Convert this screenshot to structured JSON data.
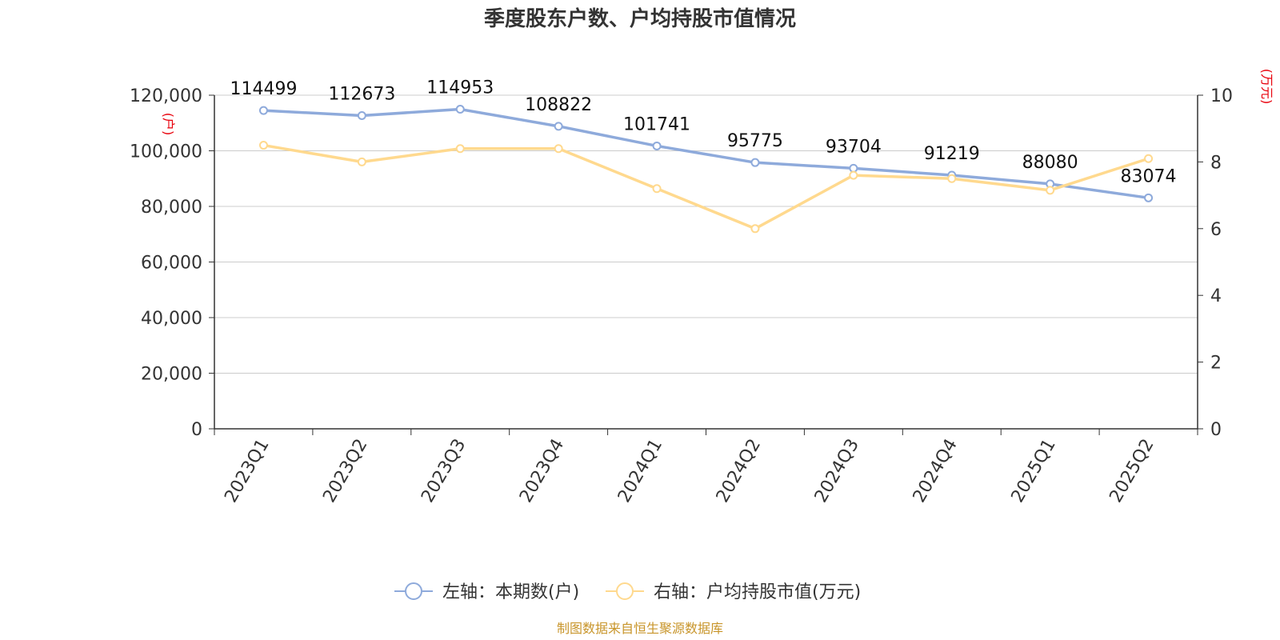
{
  "chart_data": {
    "type": "line",
    "title": "季度股东户数、户均持股市值情况",
    "categories": [
      "2023Q1",
      "2023Q2",
      "2023Q3",
      "2023Q4",
      "2024Q1",
      "2024Q2",
      "2024Q3",
      "2024Q4",
      "2025Q1",
      "2025Q2"
    ],
    "series": [
      {
        "name": "左轴：本期数(户)",
        "axis": "left",
        "color": "#8eaadb",
        "values": [
          114499,
          112673,
          114953,
          108822,
          101741,
          95775,
          93704,
          91219,
          88080,
          83074
        ],
        "labels": [
          "114499",
          "112673",
          "114953",
          "108822",
          "101741",
          "95775",
          "93704",
          "91219",
          "88080",
          "83074"
        ]
      },
      {
        "name": "右轴：户均持股市值(万元)",
        "axis": "right",
        "color": "#ffd98e",
        "values": [
          8.5,
          8.0,
          8.4,
          8.4,
          7.2,
          6.0,
          7.6,
          7.5,
          7.15,
          8.1
        ]
      }
    ],
    "left_axis": {
      "unit": "(户)",
      "ylim": [
        0,
        120000
      ],
      "ticks": [
        "0",
        "20,000",
        "40,000",
        "60,000",
        "80,000",
        "100,000",
        "120,000"
      ]
    },
    "right_axis": {
      "unit": "(万元)",
      "ylim": [
        0,
        10
      ],
      "ticks": [
        "0",
        "2",
        "4",
        "6",
        "8",
        "10"
      ]
    },
    "grid": true,
    "legend_position": "bottom-center"
  },
  "source": "制图数据来自恒生聚源数据库"
}
